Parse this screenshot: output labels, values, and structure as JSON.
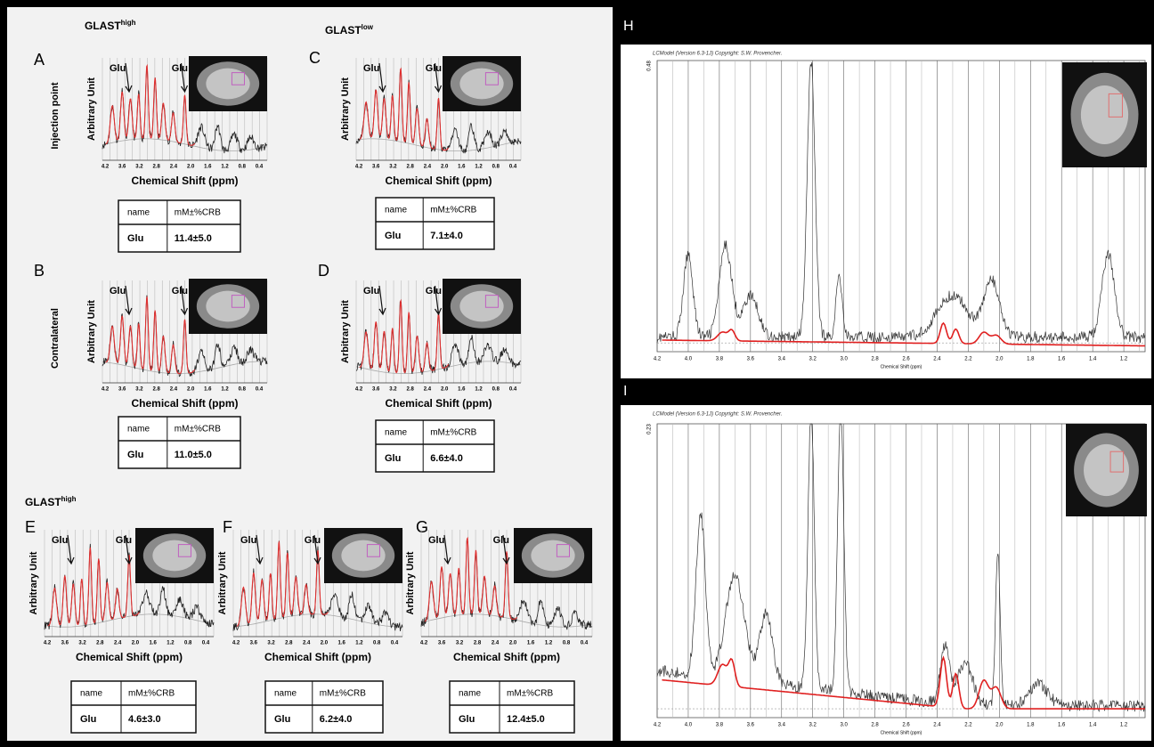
{
  "left": {
    "groups": [
      {
        "text": "GLAST",
        "sup": "high"
      },
      {
        "text": "GLAST",
        "sup": "low"
      },
      {
        "text": "GLAST",
        "sup": "high"
      }
    ],
    "row_labels": [
      "Injection point",
      "Contralateral"
    ],
    "y_label": "Arbitrary Unit",
    "x_label": "Chemical Shift (ppm)",
    "peak_label": "Glu",
    "ticks": [
      "4.2",
      "3.6",
      "3.2",
      "2.8",
      "2.4",
      "2.0",
      "1.6",
      "1.2",
      "0.8",
      "0.4"
    ],
    "table_header": [
      "name",
      "mM±%CRB"
    ],
    "panels": [
      {
        "letter": "A",
        "name": "Glu",
        "value": "11.4±5.0"
      },
      {
        "letter": "C",
        "name": "Glu",
        "value": "7.1±4.0"
      },
      {
        "letter": "B",
        "name": "Glu",
        "value": "11.0±5.0"
      },
      {
        "letter": "D",
        "name": "Glu",
        "value": "6.6±4.0"
      },
      {
        "letter": "E",
        "name": "Glu",
        "value": "4.6±3.0"
      },
      {
        "letter": "F",
        "name": "Glu",
        "value": "6.2±4.0"
      },
      {
        "letter": "G",
        "name": "Glu",
        "value": "12.4±5.0"
      }
    ]
  },
  "right": {
    "panels": [
      {
        "letter": "H",
        "caption": "LCModel (Version 6.3-1J) Copyright: S.W. Provencher.",
        "ymax": "0.48"
      },
      {
        "letter": "I",
        "caption": "LCModel (Version 6.3-1J) Copyright: S.W. Provencher.",
        "ymax": "0.23"
      }
    ],
    "ticks": [
      "4.2",
      "4.0",
      "3.8",
      "3.6",
      "3.4",
      "3.2",
      "3.0",
      "2.8",
      "2.6",
      "2.4",
      "2.2",
      "2.0",
      "1.8",
      "1.6",
      "1.4",
      "1.2"
    ],
    "x_label": "Chemical Shift (ppm)"
  }
}
